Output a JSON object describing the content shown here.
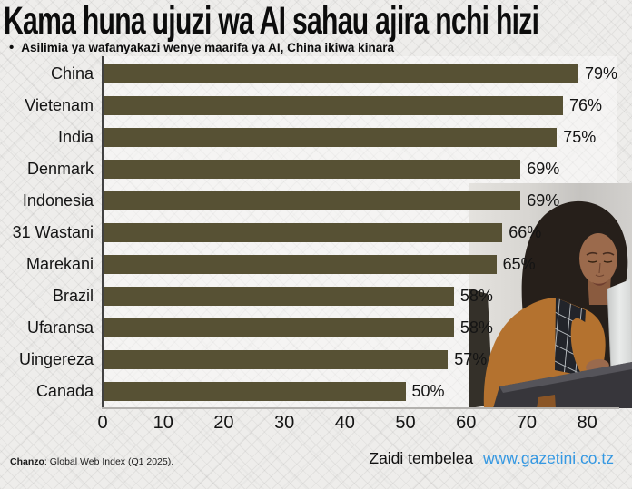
{
  "title": "Kama huna ujuzi wa AI sahau ajira nchi hizi",
  "subtitle": {
    "bullet": "•",
    "text": "Asilimia ya wafanyakazi wenye maarifa ya AI, China ikiwa kinara"
  },
  "chart_data": {
    "type": "bar",
    "orientation": "horizontal",
    "title": "Kama huna ujuzi wa AI sahau ajira nchi hizi",
    "subtitle": "Asilimia ya wafanyakazi wenye maarifa ya AI, China ikiwa kinara",
    "categories": [
      "China",
      "Vietenam",
      "India",
      "Denmark",
      "Indonesia",
      "31 Wastani",
      "Marekani",
      "Brazil",
      "Ufaransa",
      "Uingereza",
      "Canada"
    ],
    "values": [
      79,
      76,
      75,
      69,
      69,
      66,
      65,
      58,
      58,
      57,
      50
    ],
    "value_suffix": "%",
    "x_ticks": [
      0,
      10,
      20,
      30,
      40,
      50,
      60,
      70,
      80
    ],
    "xlim": [
      0,
      85
    ],
    "xlabel": "",
    "ylabel": "",
    "grid": false,
    "legend": false,
    "bar_color": "#575134"
  },
  "photo": {
    "alt_name": "woman-in-orange-cardigan-using-laptop"
  },
  "source": {
    "label": "Chanzo",
    "text": ": Global Web Index (Q1 2025)."
  },
  "footer": {
    "text": "Zaidi tembelea",
    "link": "www.gazetini.co.tz",
    "link_color": "#3598e2"
  },
  "colors": {
    "bar": "#575134",
    "background": "#eeedeb",
    "text": "#111111",
    "axis_v": "#414141",
    "axis_h": "#b3b1ae",
    "link": "#3598e2"
  }
}
